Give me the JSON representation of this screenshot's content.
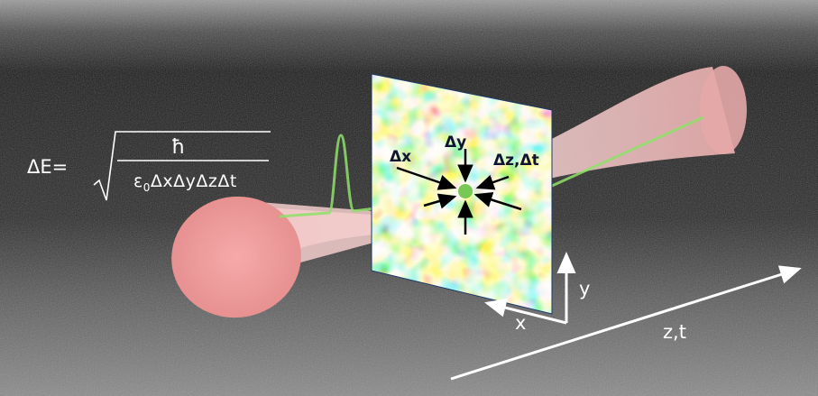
{
  "formula": {
    "lhs": "ΔE=",
    "numerator": "ħ",
    "epsilon": "ε",
    "epsilon_sub": "0",
    "denominator_rest": "ΔxΔyΔzΔt"
  },
  "labels": {
    "delta_x": "Δx",
    "delta_y": "Δy",
    "delta_z_t": "Δz,Δt",
    "axis_x": "x",
    "axis_y": "y",
    "axis_zt": "z,t"
  },
  "colors": {
    "background_dark": "#1a1a1a",
    "beam_pink": "#f0b8b8",
    "beam_mouth": "#f29d9d",
    "pulse_green": "#7ed957",
    "axis_line": "#ffffff"
  }
}
